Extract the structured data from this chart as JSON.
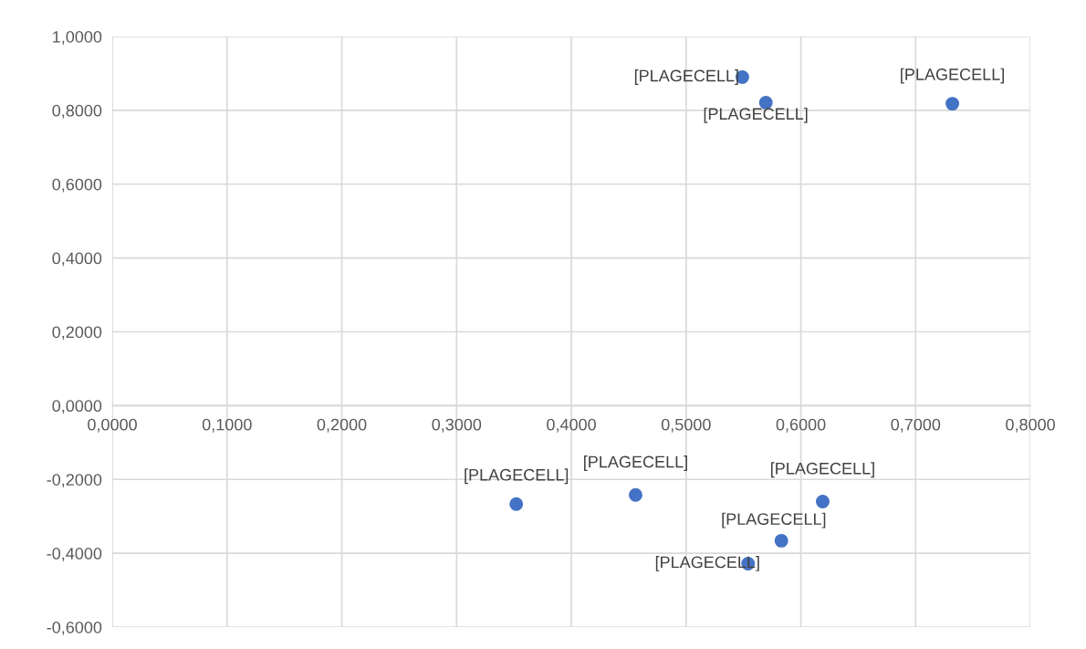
{
  "chart_data": {
    "type": "scatter",
    "x": [
      0.549,
      0.5695,
      0.732,
      0.352,
      0.456,
      0.619,
      0.583,
      0.554
    ],
    "series": [
      {
        "color": "#4472c4",
        "values": [
          0.89,
          0.821,
          0.818,
          -0.267,
          -0.242,
          -0.26,
          -0.366,
          -0.428
        ],
        "value_labels": [
          "[PLAGECELL]",
          "[PLAGECELL]",
          "[PLAGECELL]",
          "[PLAGECELL]",
          "[PLAGECELL]",
          "[PLAGECELL]",
          "[PLAGECELL]",
          "[PLAGECELL]"
        ]
      }
    ],
    "marker": "circle",
    "xlim": [
      0,
      0.8
    ],
    "xticks": [
      {
        "value": 0,
        "label": "0,0000"
      },
      {
        "value": 0.1,
        "label": "0,1000"
      },
      {
        "value": 0.2,
        "label": "0,2000"
      },
      {
        "value": 0.3,
        "label": "0,3000"
      },
      {
        "value": 0.4,
        "label": "0,4000"
      },
      {
        "value": 0.5,
        "label": "0,5000"
      },
      {
        "value": 0.6,
        "label": "0,6000"
      },
      {
        "value": 0.7,
        "label": "0,7000"
      },
      {
        "value": 0.8,
        "label": "0,8000"
      }
    ],
    "ylim": [
      -0.6,
      1.0
    ],
    "yticks": [
      {
        "value": -0.6,
        "label": "-0,6000"
      },
      {
        "value": -0.4,
        "label": "-0,4000"
      },
      {
        "value": -0.2,
        "label": "-0,2000"
      },
      {
        "value": 0,
        "label": "0,0000"
      },
      {
        "value": 0.2,
        "label": "0,2000"
      },
      {
        "value": 0.4,
        "label": "0,4000"
      },
      {
        "value": 0.6,
        "label": "0,6000"
      },
      {
        "value": 0.8,
        "label": "0,8000"
      },
      {
        "value": 1.0,
        "label": "1,0000"
      }
    ],
    "grid": true
  }
}
